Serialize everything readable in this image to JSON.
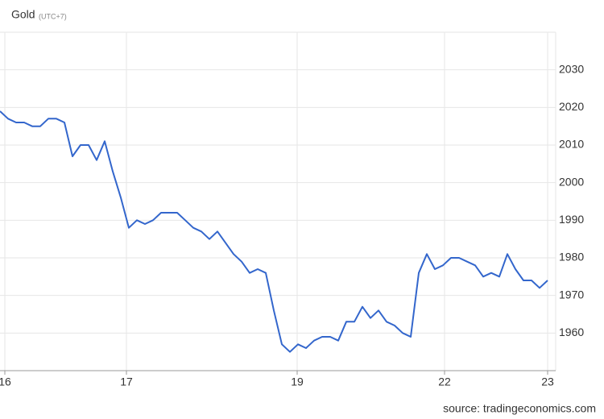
{
  "chart_data": {
    "type": "line",
    "title": "Gold",
    "subtitle": "(UTC+7)",
    "source": "source: tradingeconomics.com",
    "x": [
      0,
      1,
      2,
      3,
      4,
      5,
      6,
      7,
      8,
      9,
      10,
      11,
      12,
      13,
      14,
      15,
      16,
      17,
      18,
      19,
      20,
      21,
      22,
      23,
      24,
      25,
      26,
      27,
      28,
      29,
      30,
      31,
      32,
      33,
      34,
      35,
      36,
      37,
      38,
      39,
      40,
      41,
      42,
      43,
      44,
      45,
      46,
      47,
      48,
      49,
      50,
      51,
      52,
      53,
      54,
      55,
      56,
      57,
      58,
      59,
      60,
      61,
      62,
      63,
      64,
      65,
      66,
      67,
      68
    ],
    "series": [
      {
        "name": "Gold",
        "color": "#3366cc",
        "values": [
          2019,
          2017,
          2016,
          2016,
          2015,
          2015,
          2017,
          2017,
          2016,
          2007,
          2010,
          2010,
          2006,
          2011,
          2003,
          1996,
          1988,
          1990,
          1989,
          1990,
          1992,
          1992,
          1992,
          1990,
          1988,
          1987,
          1985,
          1987,
          1984,
          1981,
          1979,
          1976,
          1977,
          1976,
          1966,
          1957,
          1955,
          1957,
          1956,
          1958,
          1959,
          1959,
          1958,
          1963,
          1963,
          1967,
          1964,
          1966,
          1963,
          1962,
          1960,
          1959,
          1976,
          1981,
          1977,
          1978,
          1980,
          1980,
          1979,
          1978,
          1975,
          1976,
          1975,
          1981,
          1977,
          1974,
          1974,
          1972,
          1974
        ]
      }
    ],
    "xlim": [
      0,
      69
    ],
    "xticks": [
      {
        "value": 0.6,
        "label": "16"
      },
      {
        "value": 15.7,
        "label": "17"
      },
      {
        "value": 36.9,
        "label": "19"
      },
      {
        "value": 55.2,
        "label": "22"
      },
      {
        "value": 68.0,
        "label": "23"
      }
    ],
    "ylim": [
      1950,
      2040
    ],
    "yticks": [
      1960,
      1970,
      1980,
      1990,
      2000,
      2010,
      2020,
      2030
    ],
    "grid": true
  }
}
